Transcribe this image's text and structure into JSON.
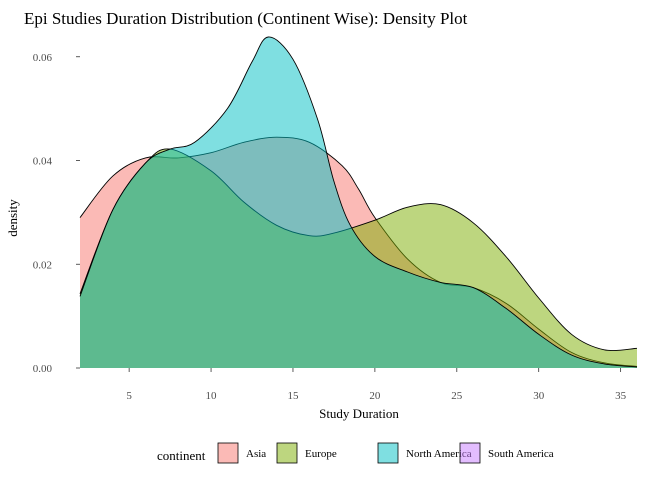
{
  "chart_data": {
    "type": "area",
    "subtype": "density",
    "title": "Epi Studies Duration Distribution (Continent Wise): Density Plot",
    "xlabel": "Study Duration",
    "ylabel": "density",
    "xlim": [
      2,
      36
    ],
    "ylim": [
      0,
      0.064
    ],
    "x_ticks": [
      5,
      10,
      15,
      20,
      25,
      30,
      35
    ],
    "y_ticks": [
      0.0,
      0.02,
      0.04,
      0.06
    ],
    "y_tick_labels": [
      "0.00",
      "0.02",
      "0.04",
      "0.06"
    ],
    "grid": false,
    "legend": {
      "title": "continent",
      "position": "bottom"
    },
    "series": [
      {
        "name": "Asia",
        "color": "#F8766D",
        "x": [
          2,
          4,
          6,
          8,
          10,
          12,
          14,
          16,
          18,
          19,
          20,
          22,
          24,
          26,
          28,
          30,
          32,
          34,
          36
        ],
        "y": [
          0.029,
          0.037,
          0.0405,
          0.0405,
          0.0415,
          0.0435,
          0.0445,
          0.0435,
          0.039,
          0.0345,
          0.029,
          0.021,
          0.0165,
          0.0155,
          0.0125,
          0.0075,
          0.003,
          0.001,
          0.0003
        ]
      },
      {
        "name": "Europe",
        "color": "#7CAE00",
        "x": [
          2,
          4,
          6,
          7.5,
          10,
          12,
          14,
          16,
          17.5,
          20,
          22,
          24,
          26,
          28,
          30,
          32,
          34,
          36
        ],
        "y": [
          0.0143,
          0.0305,
          0.0395,
          0.0422,
          0.038,
          0.032,
          0.0275,
          0.0255,
          0.026,
          0.0285,
          0.031,
          0.0315,
          0.028,
          0.0215,
          0.0135,
          0.0065,
          0.0035,
          0.0038
        ]
      },
      {
        "name": "North America",
        "color": "#00BFC4",
        "x": [
          2,
          4,
          6,
          7.5,
          9,
          11,
          12.5,
          13.5,
          15,
          16.5,
          17.5,
          18.5,
          20,
          22,
          24,
          26,
          28,
          30,
          32,
          34,
          36
        ],
        "y": [
          0.0138,
          0.0305,
          0.0395,
          0.0422,
          0.0435,
          0.05,
          0.059,
          0.0638,
          0.0595,
          0.048,
          0.036,
          0.0275,
          0.0215,
          0.0185,
          0.0165,
          0.0155,
          0.0115,
          0.0065,
          0.0025,
          0.0008,
          0.0002
        ]
      },
      {
        "name": "South America",
        "color": "#C77CFF",
        "x": [],
        "y": []
      }
    ]
  }
}
